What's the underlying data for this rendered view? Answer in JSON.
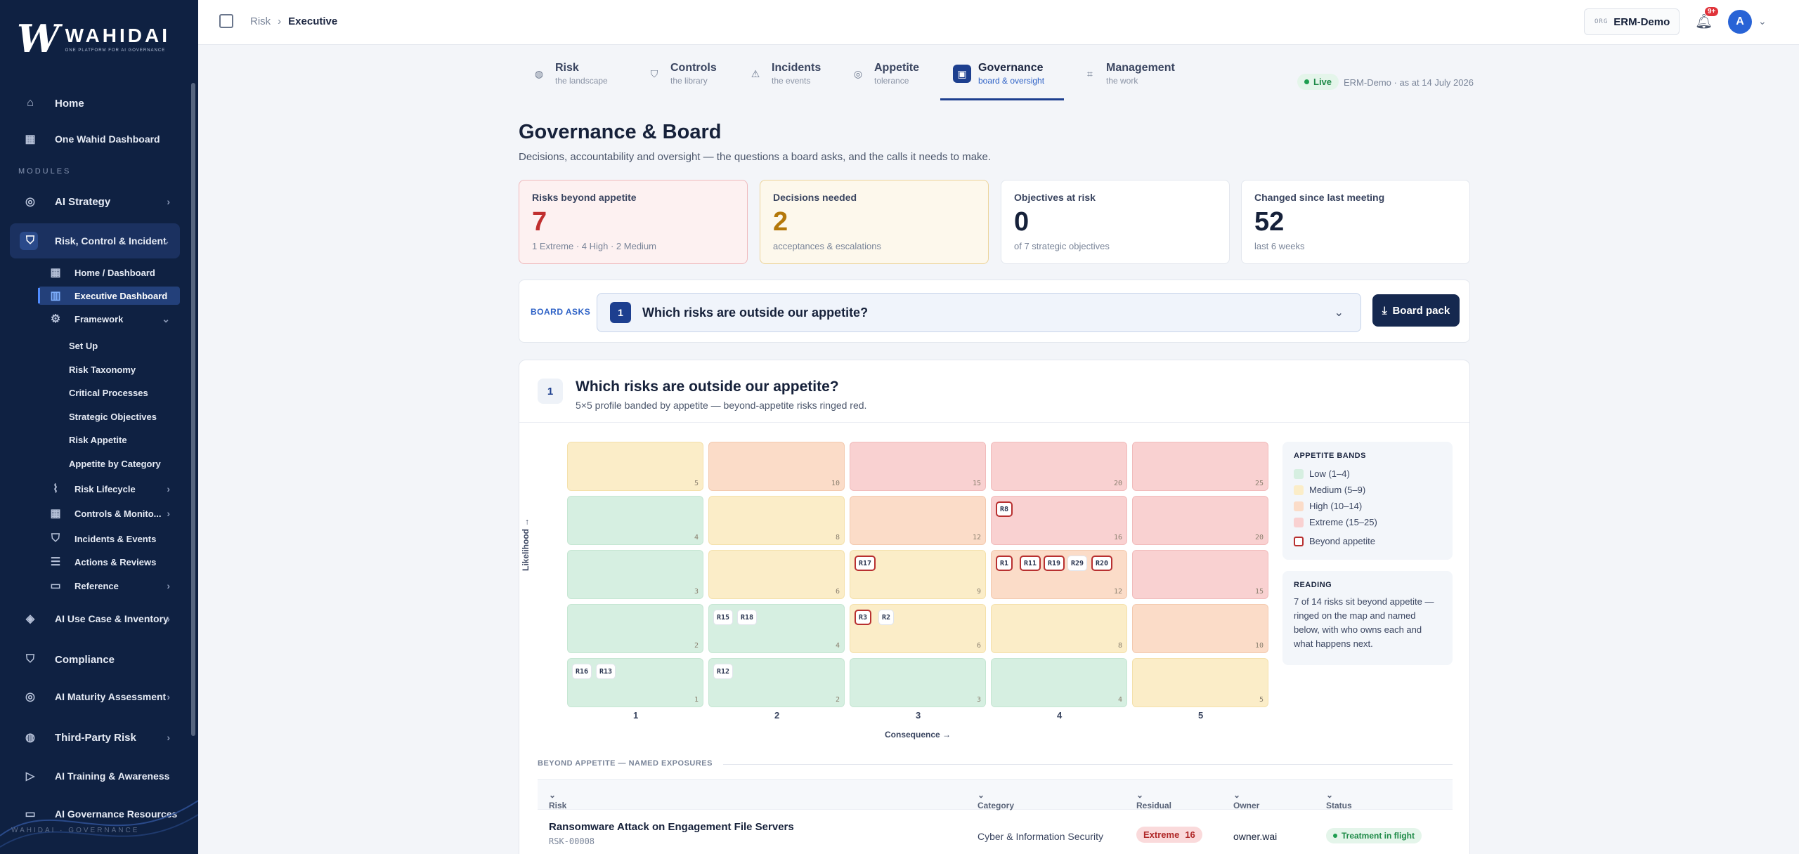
{
  "brand": {
    "mark": "W",
    "word": "WAHIDAI",
    "tagline": "ONE PLATFORM FOR AI GOVERNANCE",
    "footer": "WAHIDAI · GOVERNANCE"
  },
  "sidebar": {
    "home": "Home",
    "dashboard": "One Wahid Dashboard",
    "modules_label": "MODULES",
    "ai_strategy": "AI Strategy",
    "rci": "Risk, Control & Incident",
    "home_dashboard": "Home / Dashboard",
    "executive": "Executive Dashboard",
    "framework": "Framework",
    "framework_items": [
      "Set Up",
      "Risk Taxonomy",
      "Critical Processes",
      "Strategic Objectives",
      "Risk Appetite",
      "Appetite by Category"
    ],
    "risk_lifecycle": "Risk Lifecycle",
    "controls": "Controls & Monito...",
    "incidents": "Incidents & Events",
    "actions": "Actions & Reviews",
    "reference": "Reference",
    "usecase": "AI Use Case & Inventory",
    "compliance": "Compliance",
    "maturity": "AI Maturity Assessment",
    "thirdparty": "Third-Party Risk",
    "training": "AI Training & Awareness",
    "resources": "AI Governance Resources"
  },
  "topbar": {
    "crumb_root": "Risk",
    "crumb_sep": "›",
    "crumb_current": "Executive",
    "org_key": "ORG",
    "org_value": "ERM-Demo",
    "notif_count": "9+",
    "avatar_initial": "A"
  },
  "tabs": [
    {
      "label": "Risk",
      "sub": "the landscape",
      "icon": "globe-icon"
    },
    {
      "label": "Controls",
      "sub": "the library",
      "icon": "shield-icon"
    },
    {
      "label": "Incidents",
      "sub": "the events",
      "icon": "warning-icon"
    },
    {
      "label": "Appetite",
      "sub": "tolerance",
      "icon": "target-icon"
    },
    {
      "label": "Governance",
      "sub": "board & oversight",
      "icon": "building-icon"
    },
    {
      "label": "Management",
      "sub": "the work",
      "icon": "chart-icon"
    }
  ],
  "status": {
    "live": "Live",
    "as_at": "ERM-Demo · as at 14 July 2026"
  },
  "page": {
    "title": "Governance & Board",
    "subtitle": "Decisions, accountability and oversight — the questions a board asks, and the calls it needs to make."
  },
  "kpis": [
    {
      "label": "Risks beyond appetite",
      "value": "7",
      "sub": "1 Extreme · 4 High · 2 Medium"
    },
    {
      "label": "Decisions needed",
      "value": "2",
      "sub": "acceptances & escalations"
    },
    {
      "label": "Objectives at risk",
      "value": "0",
      "sub": "of 7 strategic objectives"
    },
    {
      "label": "Changed since last meeting",
      "value": "52",
      "sub": "last 6 weeks"
    }
  ],
  "board_asks": {
    "label": "BOARD ASKS",
    "num": "1",
    "question": "Which risks are outside our appetite?",
    "button": "Board pack"
  },
  "card": {
    "num": "1",
    "question": "Which risks are outside our appetite?",
    "subtitle": "5×5 profile banded by appetite — beyond-appetite risks ringed red."
  },
  "heatmap": {
    "x_label": "Consequence →",
    "y_label": "Likelihood →",
    "x_ticks": [
      "1",
      "2",
      "3",
      "4",
      "5"
    ],
    "rows": [
      [
        {
          "n": "5",
          "b": "y"
        },
        {
          "n": "10",
          "b": "o"
        },
        {
          "n": "15",
          "b": "r"
        },
        {
          "n": "20",
          "b": "r"
        },
        {
          "n": "25",
          "b": "r"
        }
      ],
      [
        {
          "n": "4",
          "b": "g"
        },
        {
          "n": "8",
          "b": "y"
        },
        {
          "n": "12",
          "b": "o"
        },
        {
          "n": "16",
          "b": "r",
          "chips": [
            {
              "id": "R8",
              "ring": true
            }
          ]
        },
        {
          "n": "20",
          "b": "r"
        }
      ],
      [
        {
          "n": "3",
          "b": "g"
        },
        {
          "n": "6",
          "b": "y"
        },
        {
          "n": "9",
          "b": "y",
          "chips": [
            {
              "id": "R17",
              "ring": true
            }
          ]
        },
        {
          "n": "12",
          "b": "o",
          "chips": [
            {
              "id": "R1",
              "ring": true
            },
            {
              "id": "R11",
              "ring": true
            },
            {
              "id": "R19",
              "ring": true
            },
            {
              "id": "R29",
              "ring": false
            },
            {
              "id": "R20",
              "ring": true
            }
          ]
        },
        {
          "n": "15",
          "b": "r"
        }
      ],
      [
        {
          "n": "2",
          "b": "g"
        },
        {
          "n": "4",
          "b": "g",
          "chips": [
            {
              "id": "R15",
              "ring": false
            },
            {
              "id": "R18",
              "ring": false
            }
          ]
        },
        {
          "n": "6",
          "b": "y",
          "chips": [
            {
              "id": "R3",
              "ring": true
            },
            {
              "id": "R2",
              "ring": false
            }
          ]
        },
        {
          "n": "8",
          "b": "y"
        },
        {
          "n": "10",
          "b": "o"
        }
      ],
      [
        {
          "n": "1",
          "b": "g",
          "chips": [
            {
              "id": "R16",
              "ring": false
            },
            {
              "id": "R13",
              "ring": false
            }
          ]
        },
        {
          "n": "2",
          "b": "g",
          "chips": [
            {
              "id": "R12",
              "ring": false
            }
          ]
        },
        {
          "n": "3",
          "b": "g"
        },
        {
          "n": "4",
          "b": "g"
        },
        {
          "n": "5",
          "b": "y"
        }
      ]
    ]
  },
  "legend": {
    "title": "APPETITE BANDS",
    "items": [
      {
        "label": "Low (1–4)",
        "color": "#d6efe1"
      },
      {
        "label": "Medium (5–9)",
        "color": "#fbedc8"
      },
      {
        "label": "High (10–14)",
        "color": "#fbdcc8"
      },
      {
        "label": "Extreme (15–25)",
        "color": "#f9d1d1"
      }
    ],
    "beyond": "Beyond appetite"
  },
  "reading": {
    "title": "READING",
    "text": "7 of 14 risks sit beyond appetite — ringed on the map and named below, with who owns each and what happens next."
  },
  "exposures": {
    "heading": "BEYOND APPETITE — NAMED EXPOSURES",
    "columns": [
      "Risk",
      "Category",
      "Residual",
      "Owner",
      "Status"
    ],
    "rows": [
      {
        "name": "Ransomware Attack on Engagement File Servers",
        "id": "RSK-00008",
        "category": "Cyber & Information Security",
        "residual_label": "Extreme",
        "residual_score": "16",
        "owner": "owner.wai",
        "status": "Treatment in flight"
      }
    ]
  }
}
